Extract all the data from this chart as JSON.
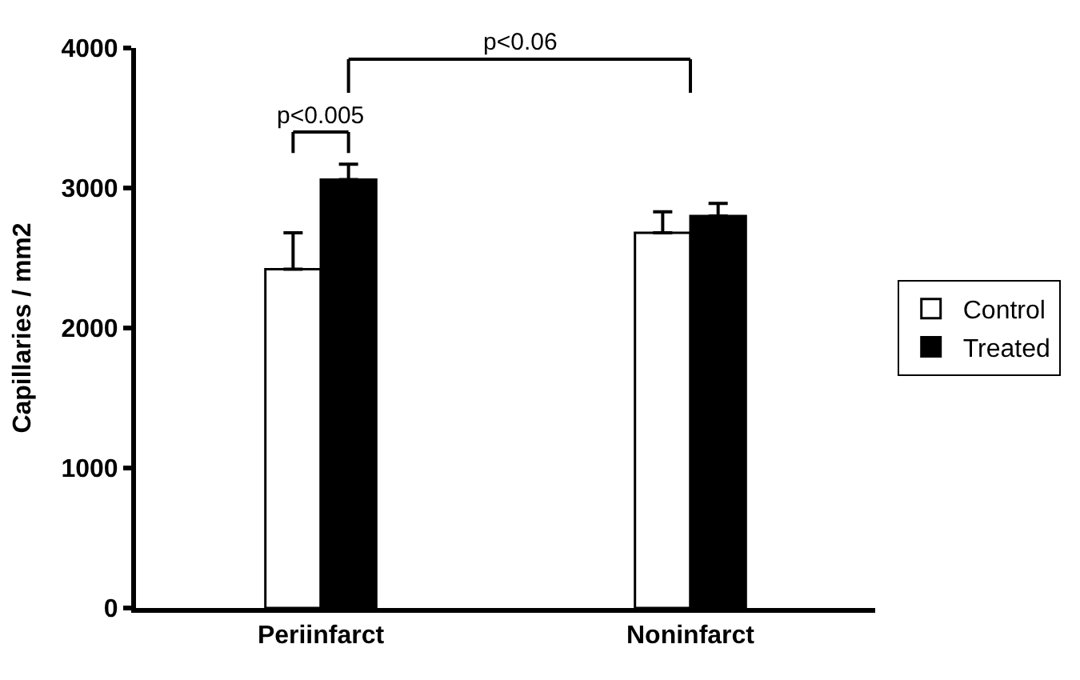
{
  "chart_data": {
    "type": "bar",
    "ylabel": "Capillaries / mm2",
    "categories": [
      "Periinfarct",
      "Noninfarct"
    ],
    "series": [
      {
        "name": "Control",
        "color": "#ffffff",
        "values": [
          2420,
          2680
        ],
        "errors": [
          [
            2420,
            2680
          ],
          [
            2680,
            2830
          ]
        ]
      },
      {
        "name": "Treated",
        "color": "#000000",
        "values": [
          3060,
          2800
        ],
        "errors": [
          [
            3060,
            3170
          ],
          [
            2800,
            2890
          ]
        ]
      }
    ],
    "ylim": [
      0,
      4000
    ],
    "yticks": [
      0,
      1000,
      2000,
      3000,
      4000
    ],
    "legend": "right",
    "annotations": [
      "p<0.005",
      "p<0.06"
    ]
  }
}
